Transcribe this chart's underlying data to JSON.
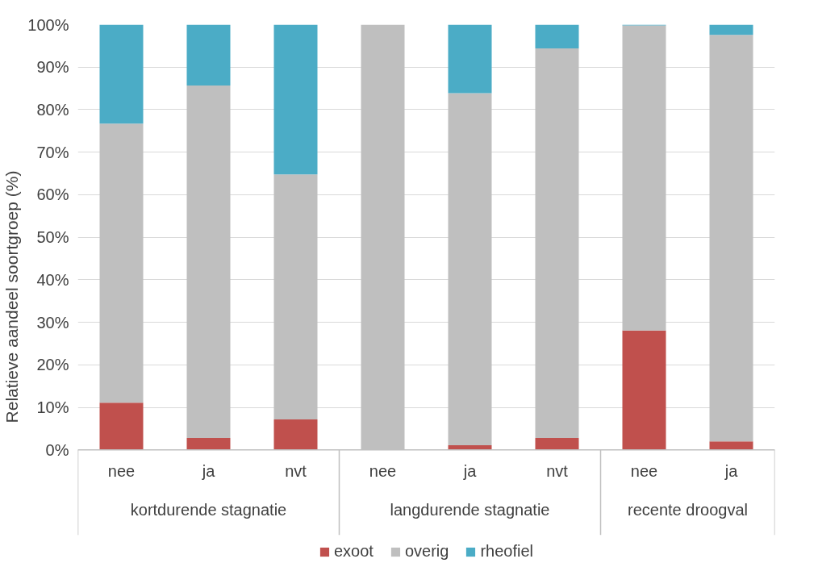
{
  "chart_data": {
    "type": "bar",
    "stacked": true,
    "ylabel": "Relatieve aandeel soortgroep (%)",
    "categories": [
      "nee",
      "ja",
      "nvt",
      "nee",
      "ja",
      "nvt",
      "nee",
      "ja"
    ],
    "annotations": [
      "kortdurende stagnatie",
      "langdurende stagnatie",
      "recente droogval"
    ],
    "series": [
      {
        "name": "exoot",
        "color": "#c0504d",
        "values": [
          11.1,
          2.8,
          7.2,
          0,
          1.1,
          2.8,
          28.1,
          2.0
        ]
      },
      {
        "name": "overig",
        "color": "#bfbfbf",
        "values": [
          65.6,
          82.9,
          57.6,
          100,
          82.8,
          91.6,
          71.7,
          95.6
        ]
      },
      {
        "name": "rheofiel",
        "color": "#4bacc6",
        "values": [
          23.3,
          14.3,
          35.2,
          0,
          16.1,
          5.6,
          0.2,
          2.4
        ]
      }
    ],
    "ylim": [
      0,
      100
    ],
    "yticks": [
      {
        "value": 0,
        "label": "0%"
      },
      {
        "value": 10,
        "label": "10%"
      },
      {
        "value": 20,
        "label": "20%"
      },
      {
        "value": 30,
        "label": "30%"
      },
      {
        "value": 40,
        "label": "40%"
      },
      {
        "value": 50,
        "label": "50%"
      },
      {
        "value": 60,
        "label": "60%"
      },
      {
        "value": 70,
        "label": "70%"
      },
      {
        "value": 80,
        "label": "80%"
      },
      {
        "value": 90,
        "label": "90%"
      },
      {
        "value": 100,
        "label": "100%"
      }
    ],
    "grid": "y",
    "legend": "bottom"
  }
}
